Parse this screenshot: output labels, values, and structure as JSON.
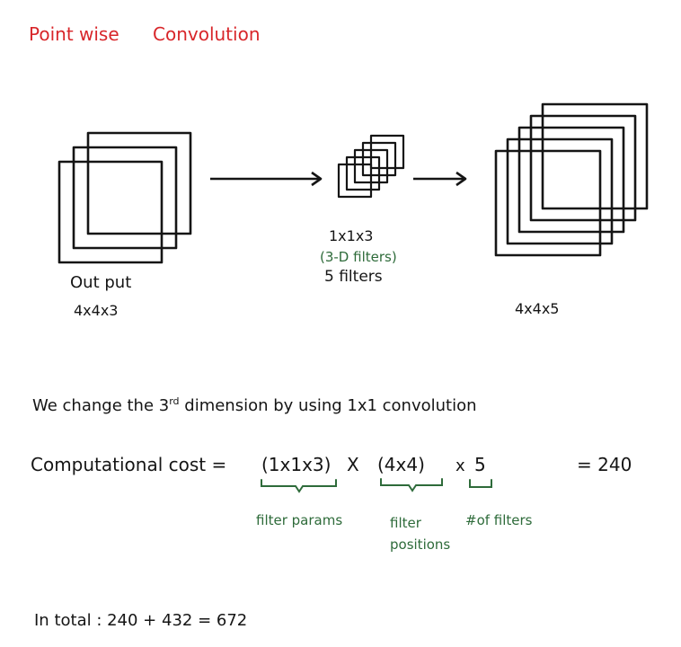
{
  "title": {
    "part1": "Point wise",
    "part2": "Convolution",
    "color": "#d8262a"
  },
  "input": {
    "label": "Out put",
    "dims": "4x4x3"
  },
  "filter": {
    "dims": "1x1x3",
    "note": "(3-D filters)",
    "count": "5 filters"
  },
  "output": {
    "dims": "4x4x5"
  },
  "explanation": {
    "prefix": "We change the 3",
    "superscript": "rd",
    "suffix": "dimension by using 1x1 convolution"
  },
  "cost": {
    "label": "Computational cost =",
    "term1": "(1x1x3)",
    "op1": "X",
    "term2": "(4x4)",
    "op2": "x",
    "term3": "5",
    "result": "= 240",
    "brace_labels": [
      "filter params",
      "filter positions",
      "#of filters"
    ]
  },
  "total": {
    "text": "In total : 240 + 432 = 672"
  },
  "colors": {
    "ink": "#151515",
    "annotation": "#2e6b3a"
  }
}
